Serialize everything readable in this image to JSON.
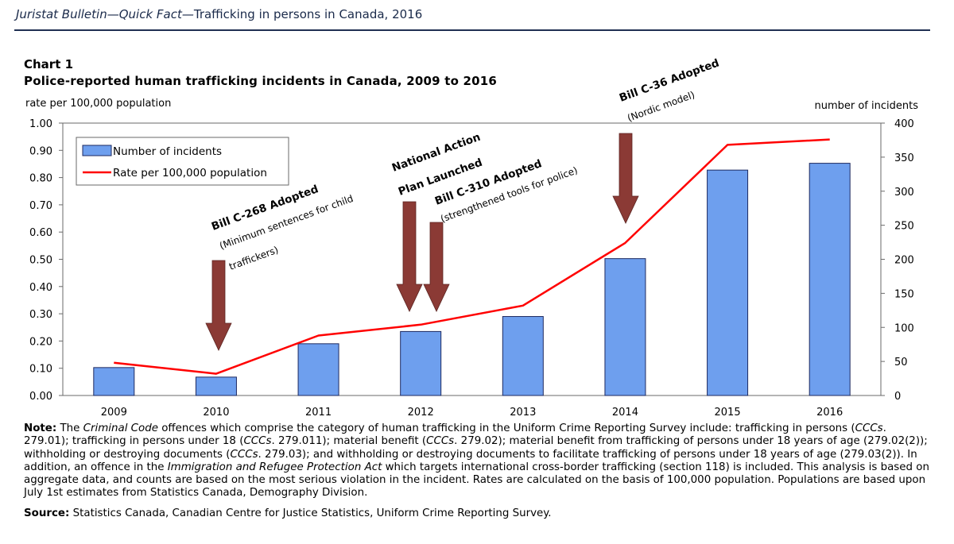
{
  "header": {
    "italic_part": "Juristat Bulletin—Quick Fact—",
    "plain_part": "Trafficking in persons in Canada, 2016"
  },
  "chart_label": "Chart 1",
  "chart_title": "Police-reported human trafficking incidents in Canada, 2009 to 2016",
  "chart_data": {
    "type": "bar",
    "title": "Police-reported human trafficking incidents in Canada, 2009 to 2016",
    "categories": [
      "2009",
      "2010",
      "2011",
      "2012",
      "2013",
      "2014",
      "2015",
      "2016"
    ],
    "series": [
      {
        "name": "Number of incidents",
        "type": "bar",
        "axis": "right",
        "color": "#6e9fee",
        "values": [
          41,
          27,
          76,
          94,
          116,
          201,
          331,
          341
        ]
      },
      {
        "name": "Rate per 100,000 population",
        "type": "line",
        "axis": "left",
        "color": "#ff0000",
        "values": [
          0.12,
          0.08,
          0.22,
          0.26,
          0.33,
          0.56,
          0.92,
          0.94
        ]
      }
    ],
    "left_axis": {
      "label": "rate per 100,000 population",
      "ylim": [
        0,
        1.0
      ],
      "ticks": [
        "0.00",
        "0.10",
        "0.20",
        "0.30",
        "0.40",
        "0.50",
        "0.60",
        "0.70",
        "0.80",
        "0.90",
        "1.00"
      ]
    },
    "right_axis": {
      "label": "number of incidents",
      "ylim": [
        0,
        400
      ],
      "ticks": [
        "0",
        "50",
        "100",
        "150",
        "200",
        "250",
        "300",
        "350",
        "400"
      ]
    },
    "legend": {
      "placement": "top-left",
      "items": [
        "Number of incidents",
        "Rate per 100,000 population"
      ]
    },
    "annotations": [
      {
        "year": "2010",
        "title": "Bill C-268 Adopted",
        "lines": [
          "(Minimum sentences for child",
          "traffickers)"
        ]
      },
      {
        "year": "2012",
        "title": "National Action Plan Launched",
        "lines": [
          "National Action",
          "Plan Launched"
        ]
      },
      {
        "year": "2012",
        "title": "Bill C-310 Adopted",
        "lines": [
          "(strengthened tools for police)"
        ]
      },
      {
        "year": "2014",
        "title": "Bill C-36 Adopted",
        "lines": [
          "(Nordic model)"
        ]
      }
    ],
    "arrow_color": "#8b3a35",
    "bar_edge_color": "#1e2a60"
  },
  "note": {
    "label": "Note:",
    "segments": [
      {
        "t": " The ",
        "i": false
      },
      {
        "t": "Criminal Code",
        "i": true
      },
      {
        "t": " offences which comprise the category of human trafficking in the Uniform Crime Reporting Survey include: trafficking in persons (",
        "i": false
      },
      {
        "t": "CCCs",
        "i": true
      },
      {
        "t": ". 279.01); trafficking in persons under 18 (",
        "i": false
      },
      {
        "t": "CCCs",
        "i": true
      },
      {
        "t": ". 279.011); material benefit (",
        "i": false
      },
      {
        "t": "CCCs",
        "i": true
      },
      {
        "t": ". 279.02); material benefit from trafficking of persons under 18 years of age (279.02(2)); withholding or destroying documents (",
        "i": false
      },
      {
        "t": "CCCs",
        "i": true
      },
      {
        "t": ". 279.03); and withholding or destroying documents to facilitate trafficking of persons under 18 years of age (279.03(2)). In addition, an offence in the ",
        "i": false
      },
      {
        "t": "Immigration and Refugee Protection Act",
        "i": true
      },
      {
        "t": " which targets international cross-border trafficking (section 118) is included. This analysis is based on aggregate data, and counts are based on the most serious violation in the incident. Rates are calculated on the basis of 100,000 population. Populations are based upon July 1st estimates from Statistics Canada, Demography Division.",
        "i": false
      }
    ]
  },
  "source": {
    "label": "Source:",
    "text": " Statistics Canada, Canadian Centre for Justice Statistics, Uniform Crime Reporting Survey."
  }
}
